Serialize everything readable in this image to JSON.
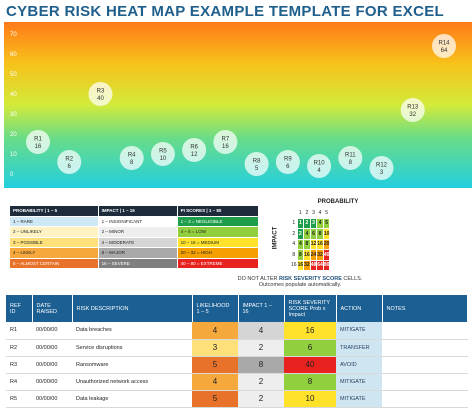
{
  "title": "CYBER RISK HEAT MAP EXAMPLE TEMPLATE FOR EXCEL",
  "chart_data": {
    "type": "scatter",
    "ylim": [
      0,
      70
    ],
    "xlim": [
      0,
      14
    ],
    "yticks": [
      "0",
      "10",
      "20",
      "30",
      "40",
      "50",
      "60",
      "70"
    ],
    "grid": false,
    "points": [
      {
        "label": "R1",
        "value": "16",
        "x": 1,
        "y": 16
      },
      {
        "label": "R2",
        "value": "6",
        "x": 2,
        "y": 6
      },
      {
        "label": "R3",
        "value": "40",
        "x": 3,
        "y": 40
      },
      {
        "label": "R4",
        "value": "8",
        "x": 4,
        "y": 8
      },
      {
        "label": "R5",
        "value": "10",
        "x": 5,
        "y": 10
      },
      {
        "label": "R6",
        "value": "12",
        "x": 6,
        "y": 12
      },
      {
        "label": "R7",
        "value": "16",
        "x": 7,
        "y": 16
      },
      {
        "label": "R8",
        "value": "5",
        "x": 8,
        "y": 5
      },
      {
        "label": "R9",
        "value": "6",
        "x": 9,
        "y": 6
      },
      {
        "label": "R10",
        "value": "4",
        "x": 10,
        "y": 4
      },
      {
        "label": "R11",
        "value": "8",
        "x": 11,
        "y": 8
      },
      {
        "label": "R12",
        "value": "3",
        "x": 12,
        "y": 3
      },
      {
        "label": "R13",
        "value": "32",
        "x": 13,
        "y": 32
      },
      {
        "label": "R14",
        "value": "64",
        "x": 14,
        "y": 64
      }
    ]
  },
  "legend": {
    "headers": [
      "PROBABILITY | 1 – 5",
      "IMPACT | 1 – 16",
      "PI SCORES | 1 – 80"
    ],
    "rows": [
      [
        "1 – RARE",
        "1 – INSIGNIFICANT",
        "1 – 3 = NEGLIGIBLE"
      ],
      [
        "2 – UNLIKELY",
        "2 – MINOR",
        "4 – 6 = LOW"
      ],
      [
        "3 – POSSIBLE",
        "4 – MODERATE",
        "10 – 16 = MEDIUM"
      ],
      [
        "4 – LIKELY",
        "8 – MAJOR",
        "20 – 32 = HIGH"
      ],
      [
        "5 – ALMOST CERTAIN",
        "16 – SEVERE",
        "40 – 80 = EXTREME"
      ]
    ]
  },
  "matrix": {
    "probability_label": "PROBABILITY",
    "impact_label": "IMPACT",
    "columns": [
      "1",
      "2",
      "3",
      "4",
      "5"
    ],
    "rows": [
      {
        "h": "1",
        "cells": [
          "1",
          "2",
          "3",
          "4",
          "5"
        ]
      },
      {
        "h": "2",
        "cells": [
          "2",
          "4",
          "6",
          "8",
          "10"
        ]
      },
      {
        "h": "4",
        "cells": [
          "4",
          "8",
          "12",
          "16",
          "20"
        ]
      },
      {
        "h": "8",
        "cells": [
          "8",
          "16",
          "24",
          "32",
          "40"
        ]
      },
      {
        "h": "16",
        "cells": [
          "16",
          "32",
          "48",
          "64",
          "80"
        ]
      }
    ]
  },
  "note": {
    "prefix": "DO NOT ALTER ",
    "bold": "RISK SEVERITY SCORE",
    "suffix": " CELLS.",
    "line2": "Outcomes populate automatically."
  },
  "register": {
    "headers": [
      "REF ID",
      "DATE RAISED",
      "RISK DESCRIPTION",
      "LIKELIHOOD 1 – 5",
      "IMPACT 1 – 16",
      "RISK SEVERITY SCORE Prob x Impact",
      "ACTION",
      "NOTES"
    ],
    "rows": [
      [
        "R1",
        "00/00/00",
        "Data breaches",
        "4",
        "4",
        "16",
        "MITIGATE",
        ""
      ],
      [
        "R2",
        "00/00/00",
        "Service disruptions",
        "3",
        "2",
        "6",
        "TRANSFER",
        ""
      ],
      [
        "R3",
        "00/00/00",
        "Ransomware",
        "5",
        "8",
        "40",
        "AVOID",
        ""
      ],
      [
        "R4",
        "00/00/00",
        "Unauthorized network access",
        "4",
        "2",
        "8",
        "MITIGATE",
        ""
      ],
      [
        "R5",
        "00/00/00",
        "Data leakage",
        "5",
        "2",
        "10",
        "MITIGATE",
        ""
      ]
    ]
  },
  "colors": {
    "title": "#1f5f8c",
    "header_blue": "#1b5f93",
    "extreme": "#e8231f",
    "high": "#f5a000",
    "medium": "#ffe229",
    "low": "#92cf3f",
    "negligible": "#1e9e4a"
  }
}
